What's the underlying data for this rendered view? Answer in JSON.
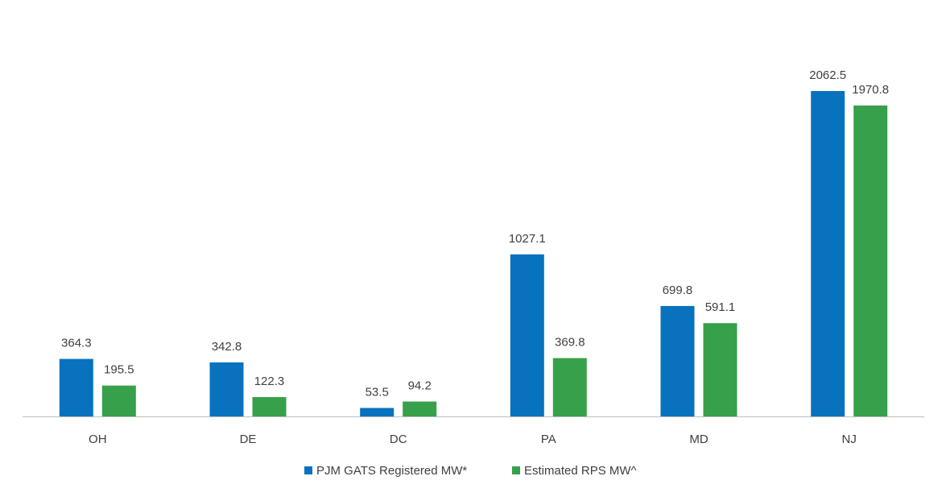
{
  "chart_data": {
    "type": "bar",
    "categories": [
      "OH",
      "DE",
      "DC",
      "PA",
      "MD",
      "NJ"
    ],
    "series": [
      {
        "name": "PJM GATS Registered MW*",
        "color": "#0872BF",
        "values": [
          364.3,
          342.8,
          53.5,
          1027.1,
          699.8,
          2062.5
        ],
        "labels": [
          "364.3",
          "342.8",
          "53.5",
          "1027.1",
          "699.8",
          "2062.5"
        ]
      },
      {
        "name": "Estimated RPS MW^",
        "color": "#37A04A",
        "values": [
          195.5,
          122.3,
          94.2,
          369.8,
          591.1,
          1970.8
        ],
        "labels": [
          "195.5",
          "122.3",
          "94.2",
          "369.8",
          "591.1",
          "1970.8"
        ]
      }
    ],
    "ylim": [
      0,
      2062.5
    ],
    "grid": false,
    "legend_position": "bottom"
  }
}
